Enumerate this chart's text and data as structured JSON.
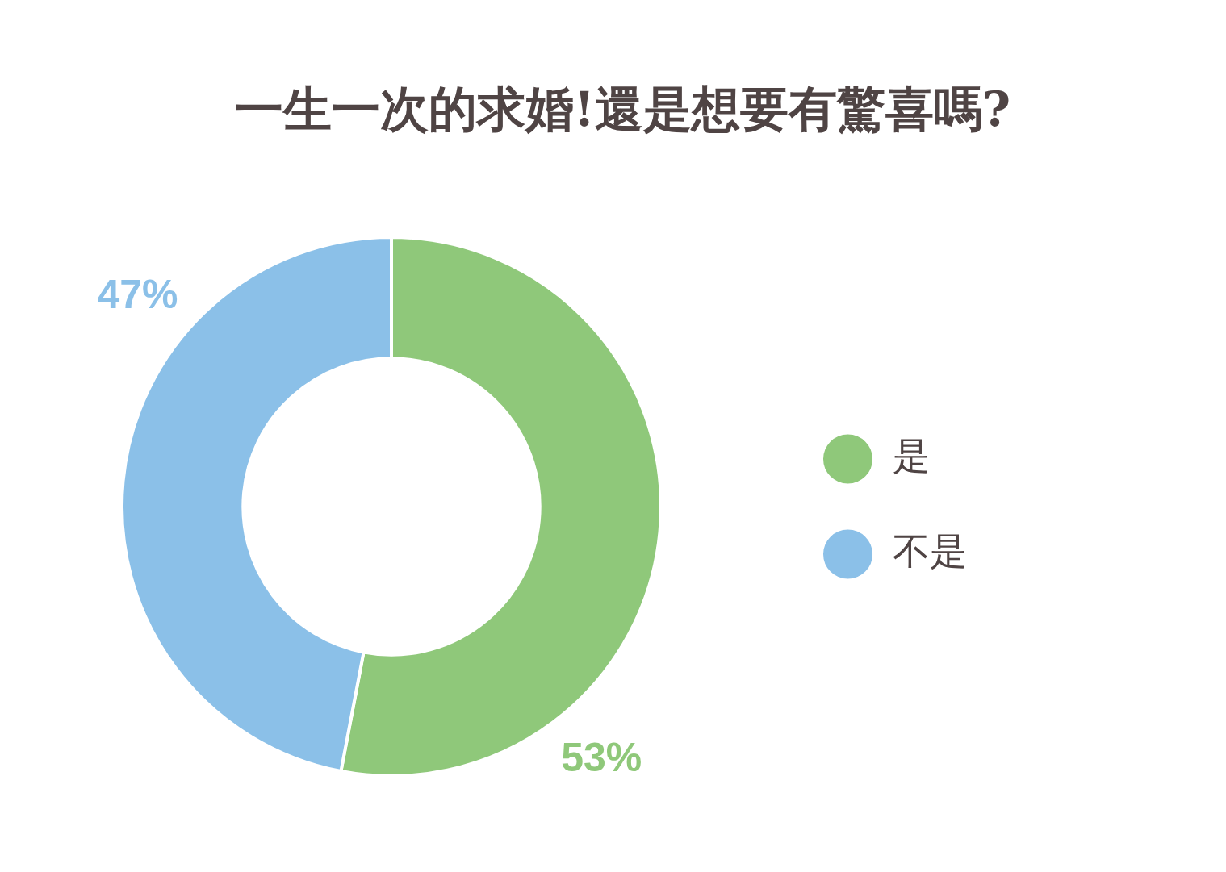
{
  "chart_data": {
    "type": "donut",
    "title": "一生一次的求婚!還是想要有驚喜嗎?",
    "categories": [
      "是",
      "不是"
    ],
    "values": [
      53,
      47
    ],
    "colors": [
      "#8fc87a",
      "#8bc0e8"
    ],
    "value_labels": [
      "53%",
      "47%"
    ],
    "legend": "right"
  }
}
